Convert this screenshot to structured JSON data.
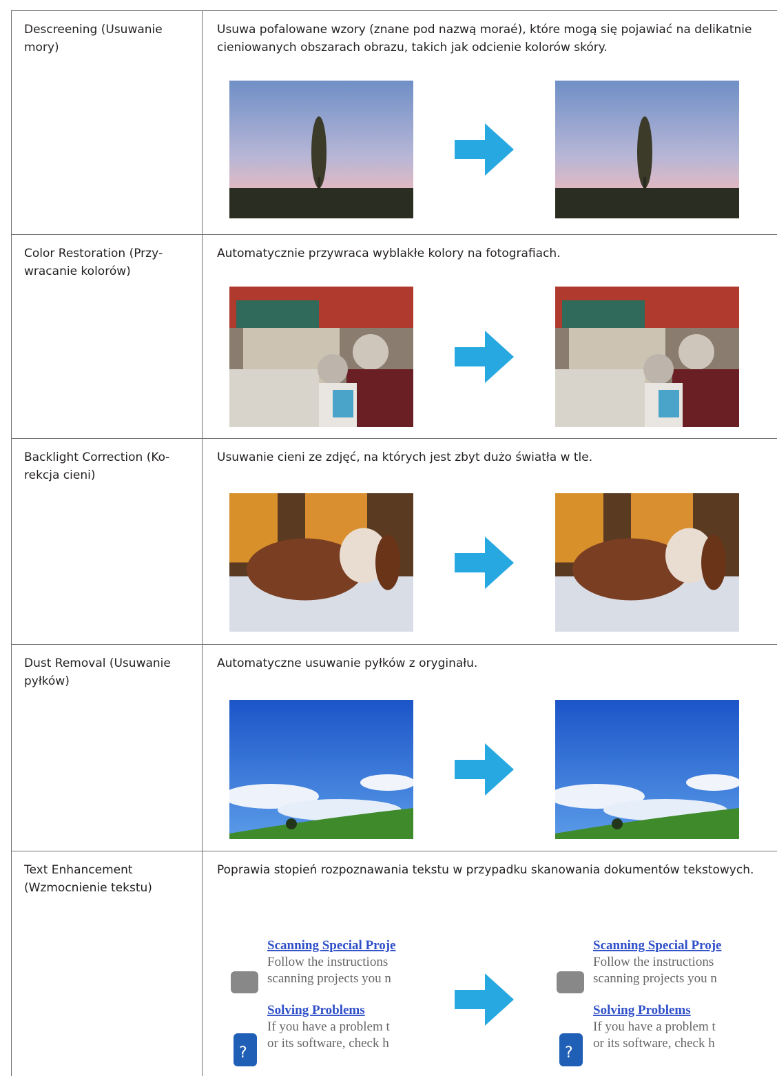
{
  "rows": [
    {
      "name": "Descreening (Usuwanie mory)",
      "description": "Usuwa pofalowane wzory (znane pod nazwą moraé), które mogą się pojawiać na delikatnie cieniowanych obszarach obrazu, takich jak odcienie kolorów skóry."
    },
    {
      "name": "Color Restoration (Przy­wracanie kolorów)",
      "description": "Automatycznie przywraca wyblakłe kolory na fotografiach."
    },
    {
      "name": "Backlight Correction (Ko­rekcja cieni)",
      "description": "Usuwanie cieni ze zdjęć, na których jest zbyt dużo światła w tle."
    },
    {
      "name": "Dust Removal (Usuwanie pyłków)",
      "description": "Automatyczne usuwanie pyłków z oryginału."
    },
    {
      "name": "Text Enhancement (Wzmocnienie tekstu)",
      "description": "Poprawia stopień rozpoznawania tekstu w przypadku skanowania dokumentów tekstowych.",
      "image_text": [
        "Scanning Special Proje",
        "Follow the instructions",
        "scanning projects you n",
        "Solving Problems",
        "If you have a problem t",
        "or its software, check h"
      ]
    }
  ]
}
